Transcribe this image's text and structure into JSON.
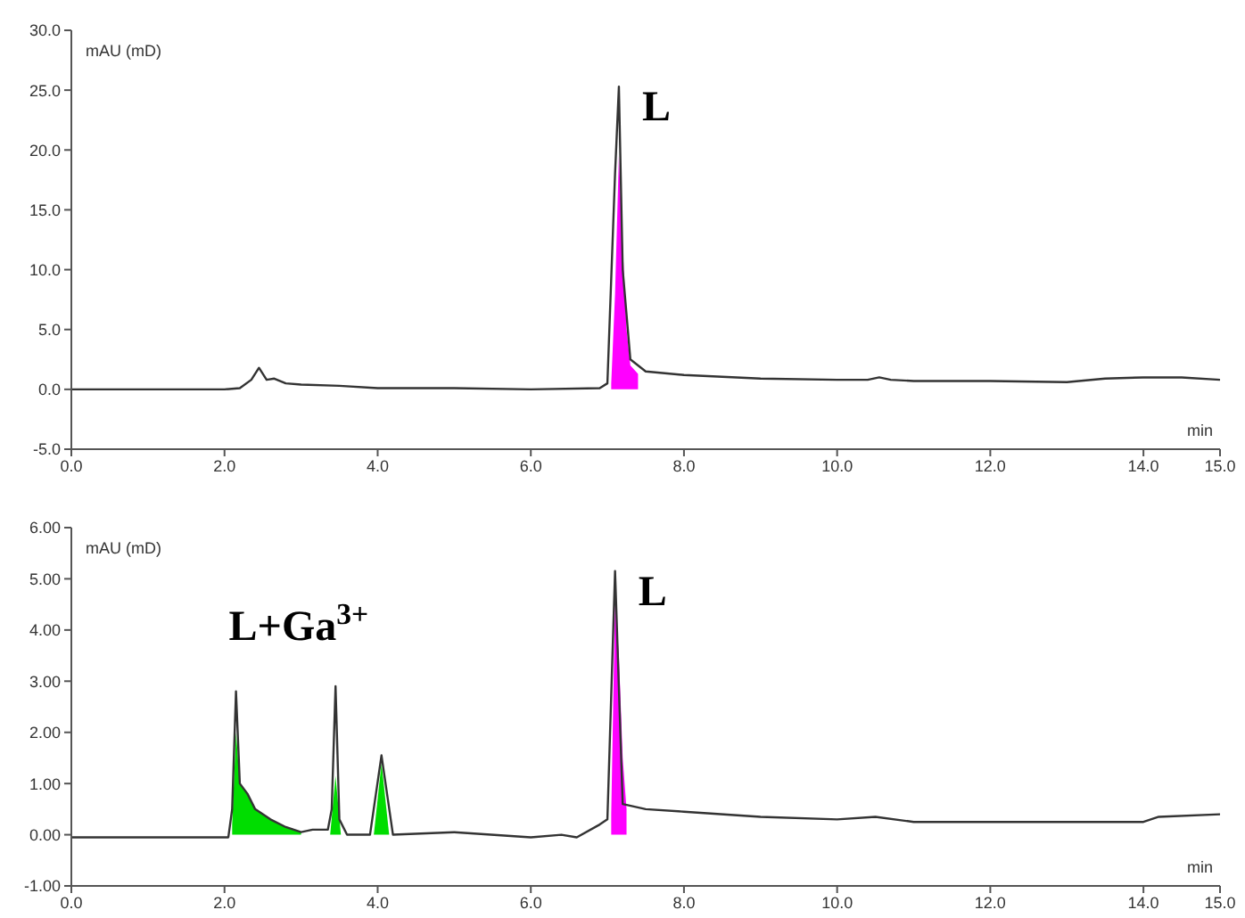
{
  "chart_data": [
    {
      "type": "line",
      "ylabel": "mAU (mD)",
      "xlabel": "min",
      "xlim": [
        0,
        15
      ],
      "xticks": [
        {
          "value": 0,
          "label": "0.0"
        },
        {
          "value": 2,
          "label": "2.0"
        },
        {
          "value": 4,
          "label": "4.0"
        },
        {
          "value": 6,
          "label": "6.0"
        },
        {
          "value": 8,
          "label": "8.0"
        },
        {
          "value": 10,
          "label": "10.0"
        },
        {
          "value": 12,
          "label": "12.0"
        },
        {
          "value": 14,
          "label": "14.0"
        },
        {
          "value": 15,
          "label": "15.0"
        }
      ],
      "ylim": [
        -5,
        30
      ],
      "yticks": [
        {
          "value": -5,
          "label": "-5.0"
        },
        {
          "value": 0,
          "label": "0.0"
        },
        {
          "value": 5,
          "label": "5.0"
        },
        {
          "value": 10,
          "label": "10.0"
        },
        {
          "value": 15,
          "label": "15.0"
        },
        {
          "value": 20,
          "label": "20.0"
        },
        {
          "value": 25,
          "label": "25.0"
        },
        {
          "value": 30,
          "label": "30.0"
        }
      ],
      "series": [
        {
          "type": "area",
          "color": "#ff00ff",
          "x": [
            7.05,
            7.1,
            7.15,
            7.2,
            7.25,
            7.3,
            7.4
          ],
          "values": [
            0.5,
            8,
            19.5,
            12,
            5,
            2,
            1.3
          ]
        },
        {
          "color": "#333333",
          "x": [
            0,
            1,
            2,
            2.2,
            2.35,
            2.45,
            2.55,
            2.65,
            2.8,
            3,
            3.5,
            4,
            5,
            6,
            6.9,
            7.0,
            7.1,
            7.15,
            7.2,
            7.3,
            7.5,
            8,
            9,
            10,
            10.4,
            10.55,
            10.7,
            11,
            12,
            13,
            13.5,
            14,
            14.5,
            15
          ],
          "values": [
            0,
            0,
            0,
            0.1,
            0.8,
            1.8,
            0.8,
            0.9,
            0.5,
            0.4,
            0.3,
            0.1,
            0.1,
            0.0,
            0.1,
            0.5,
            18,
            25.3,
            10,
            2.5,
            1.5,
            1.2,
            0.9,
            0.8,
            0.8,
            1.0,
            0.8,
            0.7,
            0.7,
            0.6,
            0.9,
            1.0,
            1.0,
            0.8
          ]
        }
      ],
      "annotations": [
        {
          "text": "L",
          "x": 7.15,
          "y": 25.3
        }
      ]
    },
    {
      "type": "line",
      "ylabel": "mAU (mD)",
      "xlabel": "min",
      "xlim": [
        0,
        15
      ],
      "xticks": [
        {
          "value": 0,
          "label": "0.0"
        },
        {
          "value": 2,
          "label": "2.0"
        },
        {
          "value": 4,
          "label": "4.0"
        },
        {
          "value": 6,
          "label": "6.0"
        },
        {
          "value": 8,
          "label": "8.0"
        },
        {
          "value": 10,
          "label": "10.0"
        },
        {
          "value": 12,
          "label": "12.0"
        },
        {
          "value": 14,
          "label": "14.0"
        },
        {
          "value": 15,
          "label": "15.0"
        }
      ],
      "ylim": [
        -1,
        6
      ],
      "yticks": [
        {
          "value": -1,
          "label": "-1.00"
        },
        {
          "value": 0,
          "label": "0.00"
        },
        {
          "value": 1,
          "label": "1.00"
        },
        {
          "value": 2,
          "label": "2.00"
        },
        {
          "value": 3,
          "label": "3.00"
        },
        {
          "value": 4,
          "label": "4.00"
        },
        {
          "value": 5,
          "label": "5.00"
        },
        {
          "value": 6,
          "label": "6.00"
        }
      ],
      "series": [
        {
          "type": "area",
          "color": "#00dd00",
          "x": [
            2.1,
            2.15,
            2.2,
            2.3,
            2.4,
            2.6,
            2.8,
            3.0
          ],
          "values": [
            0.2,
            2.0,
            1.0,
            0.8,
            0.5,
            0.3,
            0.15,
            0.05
          ]
        },
        {
          "type": "area",
          "color": "#00dd00",
          "x": [
            3.38,
            3.45,
            3.52
          ],
          "values": [
            0.0,
            1.15,
            0.0
          ]
        },
        {
          "type": "area",
          "color": "#00dd00",
          "x": [
            3.95,
            4.05,
            4.15
          ],
          "values": [
            0.0,
            1.4,
            0.0
          ]
        },
        {
          "type": "area",
          "color": "#ff00ff",
          "x": [
            7.05,
            7.1,
            7.15,
            7.2,
            7.25
          ],
          "values": [
            0.4,
            4.6,
            3.5,
            1.5,
            0.5
          ]
        },
        {
          "color": "#333333",
          "x": [
            0,
            1,
            2.05,
            2.1,
            2.15,
            2.2,
            2.3,
            2.4,
            2.6,
            2.8,
            3.0,
            3.15,
            3.35,
            3.4,
            3.45,
            3.5,
            3.6,
            3.9,
            4.05,
            4.2,
            5,
            6,
            6.4,
            6.6,
            6.9,
            7.0,
            7.1,
            7.2,
            7.5,
            8,
            9,
            10,
            10.5,
            11,
            13.5,
            14,
            14.2,
            15
          ],
          "values": [
            -0.05,
            -0.05,
            -0.05,
            0.5,
            2.8,
            1.0,
            0.8,
            0.5,
            0.3,
            0.15,
            0.05,
            0.1,
            0.1,
            0.5,
            2.9,
            0.3,
            0.0,
            0.0,
            1.55,
            0.0,
            0.05,
            -0.05,
            0.0,
            -0.05,
            0.2,
            0.3,
            5.15,
            0.6,
            0.5,
            0.45,
            0.35,
            0.3,
            0.35,
            0.25,
            0.25,
            0.25,
            0.35,
            0.4
          ]
        }
      ],
      "annotations": [
        {
          "text": "L+Ga$^{3+}$",
          "x": 2.15,
          "y": 2.8
        },
        {
          "text": "L",
          "x": 7.1,
          "y": 5.15
        }
      ]
    }
  ]
}
